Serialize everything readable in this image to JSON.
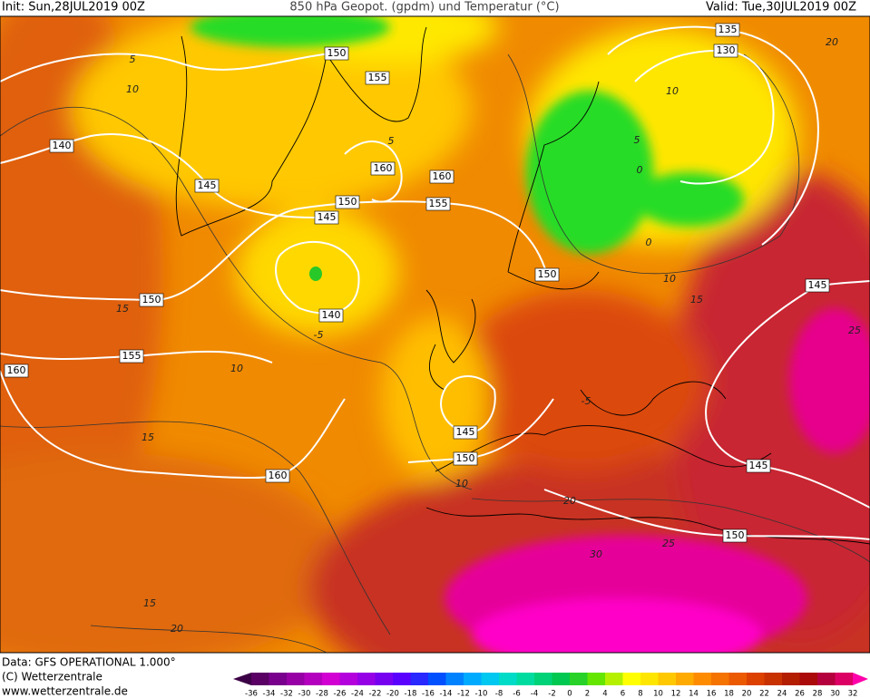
{
  "header": {
    "init": "Init: Sun,28JUL2019 00Z",
    "title": "850 hPa Geopot. (gpdm) und Temperatur (°C)",
    "valid": "Valid: Tue,30JUL2019 00Z"
  },
  "footer": {
    "data": "Data: GFS OPERATIONAL 1.000°",
    "copyright": "(C) Wetterzentrale",
    "url": "www.wetterzentrale.de"
  },
  "map": {
    "geopotential_labels": [
      150,
      155,
      160,
      160,
      150,
      155,
      145,
      145,
      140,
      150,
      140,
      155,
      160,
      160,
      145,
      150,
      150,
      135,
      130,
      145,
      145,
      150
    ],
    "temperature_labels": [
      5,
      10,
      5,
      10,
      5,
      0,
      0,
      10,
      15,
      -5,
      10,
      15,
      10,
      20,
      25,
      30,
      15,
      20,
      25,
      20,
      15,
      -5
    ]
  },
  "colorbar": {
    "labels": [
      -36,
      -34,
      -32,
      -30,
      -28,
      -26,
      -24,
      -22,
      -20,
      -18,
      -16,
      -14,
      -12,
      -10,
      -8,
      -6,
      -4,
      -2,
      0,
      2,
      4,
      6,
      8,
      10,
      12,
      14,
      16,
      18,
      20,
      22,
      24,
      26,
      28,
      30,
      32
    ],
    "colors": [
      "#3c0046",
      "#5a0064",
      "#78008c",
      "#9600a5",
      "#b400be",
      "#d200d2",
      "#b400dc",
      "#9600e6",
      "#7800f0",
      "#5a00ff",
      "#2828ff",
      "#0050ff",
      "#0082ff",
      "#00aaff",
      "#00c8f0",
      "#00dcc8",
      "#00dca0",
      "#00d278",
      "#00c850",
      "#28d228",
      "#64e600",
      "#b4f000",
      "#ffff00",
      "#ffe600",
      "#ffc800",
      "#ffaa00",
      "#ff8c00",
      "#f57300",
      "#eb5a00",
      "#dc4100",
      "#c83200",
      "#b41e00",
      "#aa0a0a",
      "#b4003c",
      "#dc0064",
      "#ff00aa"
    ]
  }
}
